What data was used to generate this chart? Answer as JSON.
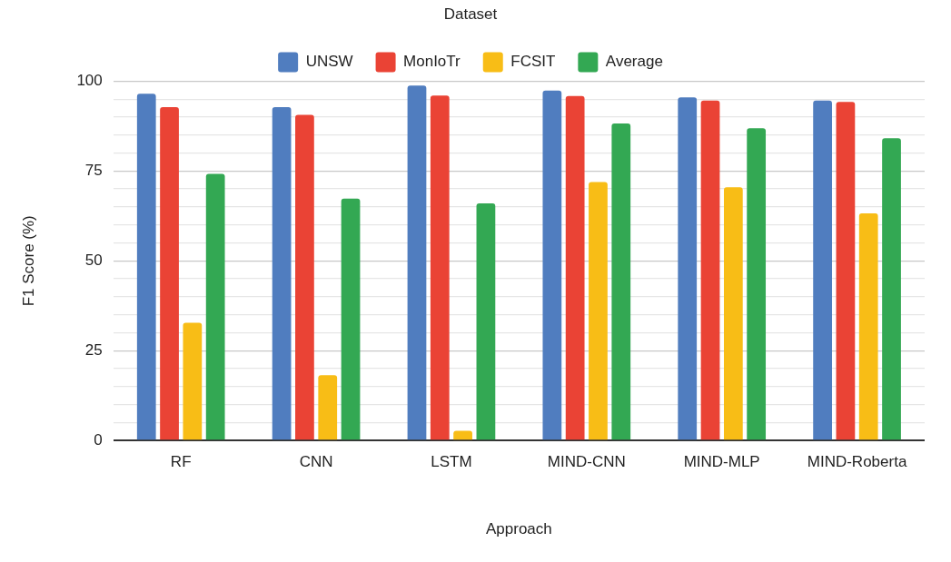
{
  "chart_data": {
    "type": "bar",
    "legend_title": "Dataset",
    "xlabel": "Approach",
    "ylabel": "F1 Score (%)",
    "categories": [
      "RF",
      "CNN",
      "LSTM",
      "MIND-CNN",
      "MIND-MLP",
      "MIND-Roberta"
    ],
    "series": [
      {
        "name": "UNSW",
        "color": "#507dbf",
        "values": [
          96.5,
          92.8,
          98.8,
          97.4,
          95.5,
          94.6
        ]
      },
      {
        "name": "MonIoTr",
        "color": "#ea4335",
        "values": [
          92.8,
          90.6,
          96.0,
          95.9,
          94.6,
          94.2
        ]
      },
      {
        "name": "FCSIT",
        "color": "#f8bd16",
        "values": [
          32.8,
          18.2,
          2.7,
          71.9,
          70.5,
          63.2
        ]
      },
      {
        "name": "Average",
        "color": "#33a853",
        "values": [
          74.2,
          67.3,
          66.0,
          88.2,
          86.9,
          84.1
        ]
      }
    ],
    "ylim": [
      0,
      100
    ],
    "yticks": [
      0,
      {
        "value": 5,
        "label": null
      },
      {
        "value": 10,
        "label": null
      },
      {
        "value": 15,
        "label": null
      },
      {
        "value": 20,
        "label": null
      },
      25,
      {
        "value": 30,
        "label": null
      },
      {
        "value": 35,
        "label": null
      },
      {
        "value": 40,
        "label": null
      },
      {
        "value": 45,
        "label": null
      },
      50,
      {
        "value": 55,
        "label": null
      },
      {
        "value": 60,
        "label": null
      },
      {
        "value": 65,
        "label": null
      },
      {
        "value": 70,
        "label": null
      },
      75,
      {
        "value": 80,
        "label": null
      },
      {
        "value": 85,
        "label": null
      },
      {
        "value": 90,
        "label": null
      },
      {
        "value": 95,
        "label": null
      },
      100
    ],
    "grid": "y",
    "legend": "top"
  }
}
